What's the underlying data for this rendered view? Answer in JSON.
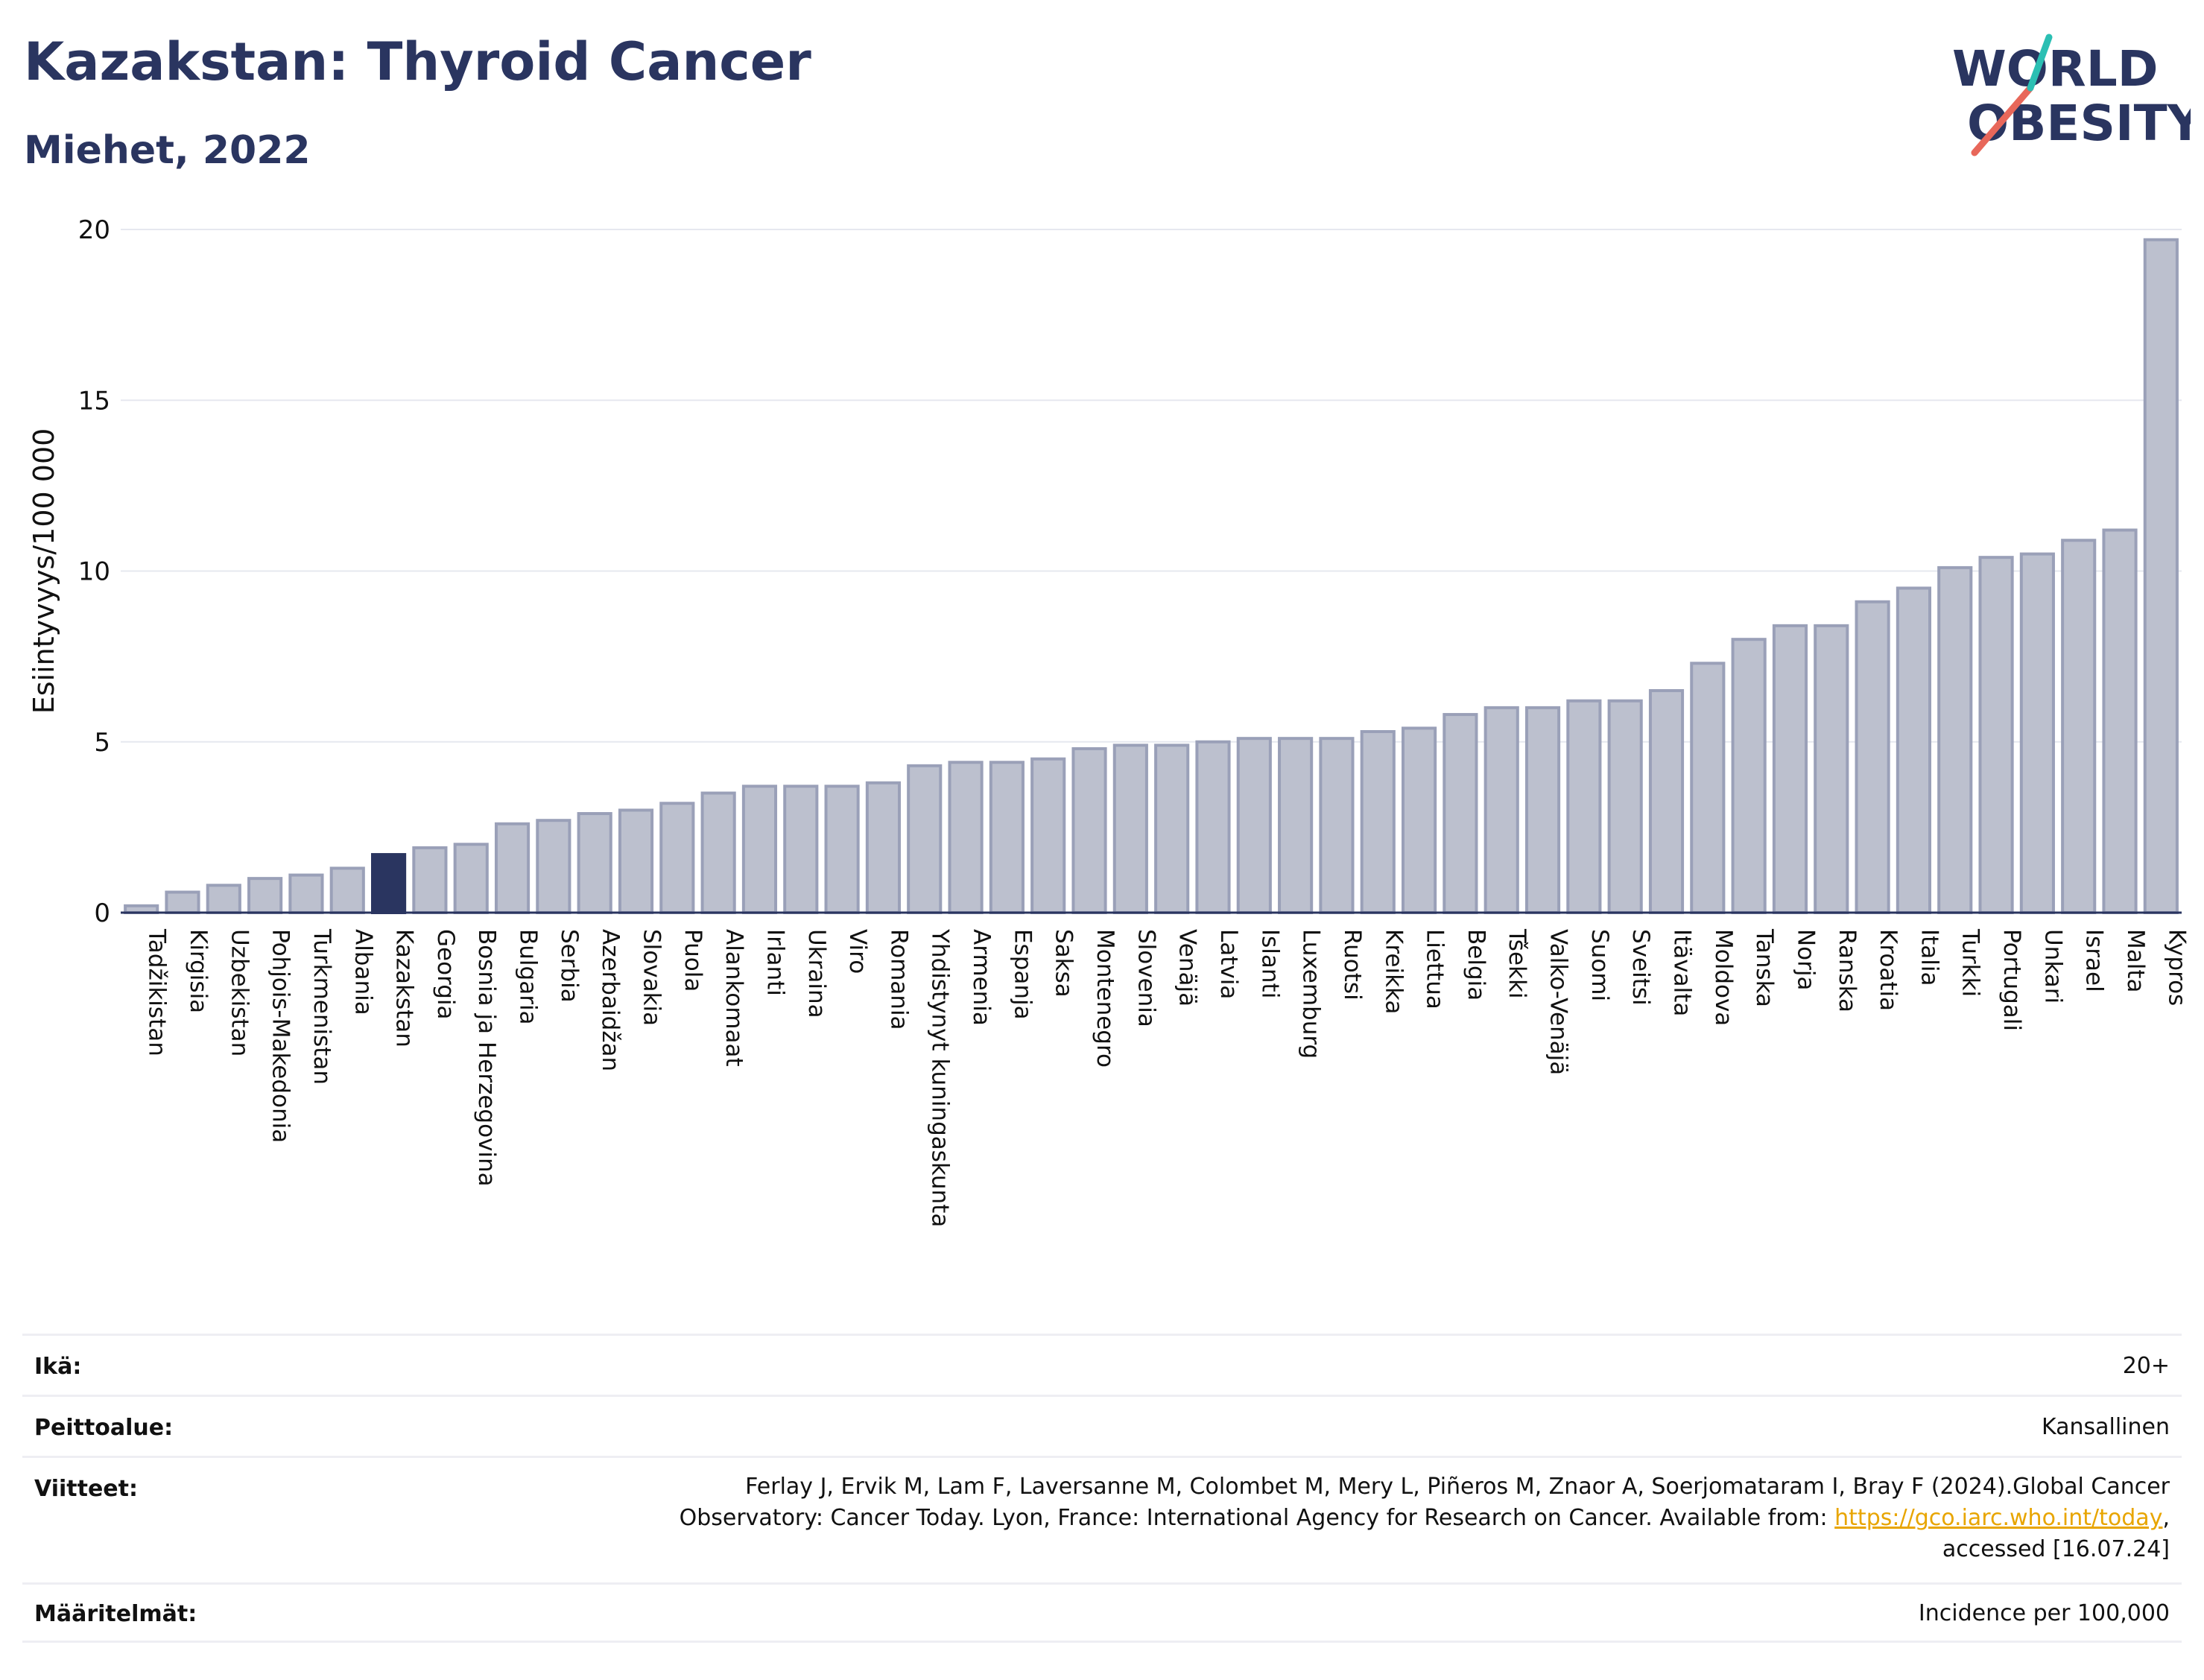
{
  "header": {
    "title": "Kazakstan: Thyroid Cancer",
    "subtitle": "Miehet, 2022"
  },
  "logo": {
    "line1": "WORLD",
    "line2": "OBESITY",
    "accent_teal": "#2bbfb3",
    "accent_red": "#e8675a",
    "text_color": "#2a3560"
  },
  "colors": {
    "bar": "#bcc0ce",
    "bar_stroke": "#9aa0b8",
    "highlight": "#2a3560",
    "grid": "#e6e8ef",
    "axis": "#2a3560"
  },
  "chart_data": {
    "type": "bar",
    "ylabel": "Esiintyvyys/100 000",
    "ylim": [
      0,
      20
    ],
    "yticks": [
      0,
      5,
      10,
      15,
      20
    ],
    "highlight": "Kazakstan",
    "categories": [
      "Tadžikistan",
      "Kirgisia",
      "Uzbekistan",
      "Pohjois-Makedonia",
      "Turkmenistan",
      "Albania",
      "Kazakstan",
      "Georgia",
      "Bosnia ja Herzegovina",
      "Bulgaria",
      "Serbia",
      "Azerbaidžan",
      "Slovakia",
      "Puola",
      "Alankomaat",
      "Irlanti",
      "Ukraina",
      "Viro",
      "Romania",
      "Yhdistynyt kuningaskunta",
      "Armenia",
      "Espanja",
      "Saksa",
      "Montenegro",
      "Slovenia",
      "Venäjä",
      "Latvia",
      "Islanti",
      "Luxemburg",
      "Ruotsi",
      "Kreikka",
      "Liettua",
      "Belgia",
      "Tšekki",
      "Valko-Venäjä",
      "Suomi",
      "Sveitsi",
      "Itävalta",
      "Moldova",
      "Tanska",
      "Norja",
      "Ranska",
      "Kroatia",
      "Italia",
      "Turkki",
      "Portugali",
      "Unkari",
      "Israel",
      "Malta",
      "Kypros"
    ],
    "values": [
      0.2,
      0.6,
      0.8,
      1.0,
      1.1,
      1.3,
      1.7,
      1.9,
      2.0,
      2.6,
      2.7,
      2.9,
      3.0,
      3.2,
      3.5,
      3.7,
      3.7,
      3.7,
      3.8,
      4.3,
      4.4,
      4.4,
      4.5,
      4.8,
      4.9,
      4.9,
      5.0,
      5.1,
      5.1,
      5.1,
      5.3,
      5.4,
      5.8,
      6.0,
      6.0,
      6.2,
      6.2,
      6.5,
      7.3,
      8.0,
      8.4,
      8.4,
      9.1,
      9.5,
      10.1,
      10.4,
      10.5,
      10.9,
      11.2,
      19.7
    ]
  },
  "metadata": [
    {
      "key": "Ikä:",
      "value": "20+"
    },
    {
      "key": "Peittoalue:",
      "value": "Kansallinen"
    },
    {
      "key": "Viitteet:",
      "line1": "Ferlay J, Ervik M, Lam F, Laversanne M, Colombet M, Mery L, Piñeros M, Znaor A, Soerjomataram I, Bray F (2024).Global Cancer",
      "line2_pre": "Observatory: Cancer Today. Lyon, France: International Agency for Research on Cancer. Available from: ",
      "link": "https://gco.iarc.who.int/today",
      "line2_post": ",",
      "line3": "accessed [16.07.24]"
    },
    {
      "key": "Määritelmät:",
      "value": "Incidence per 100,000"
    }
  ]
}
